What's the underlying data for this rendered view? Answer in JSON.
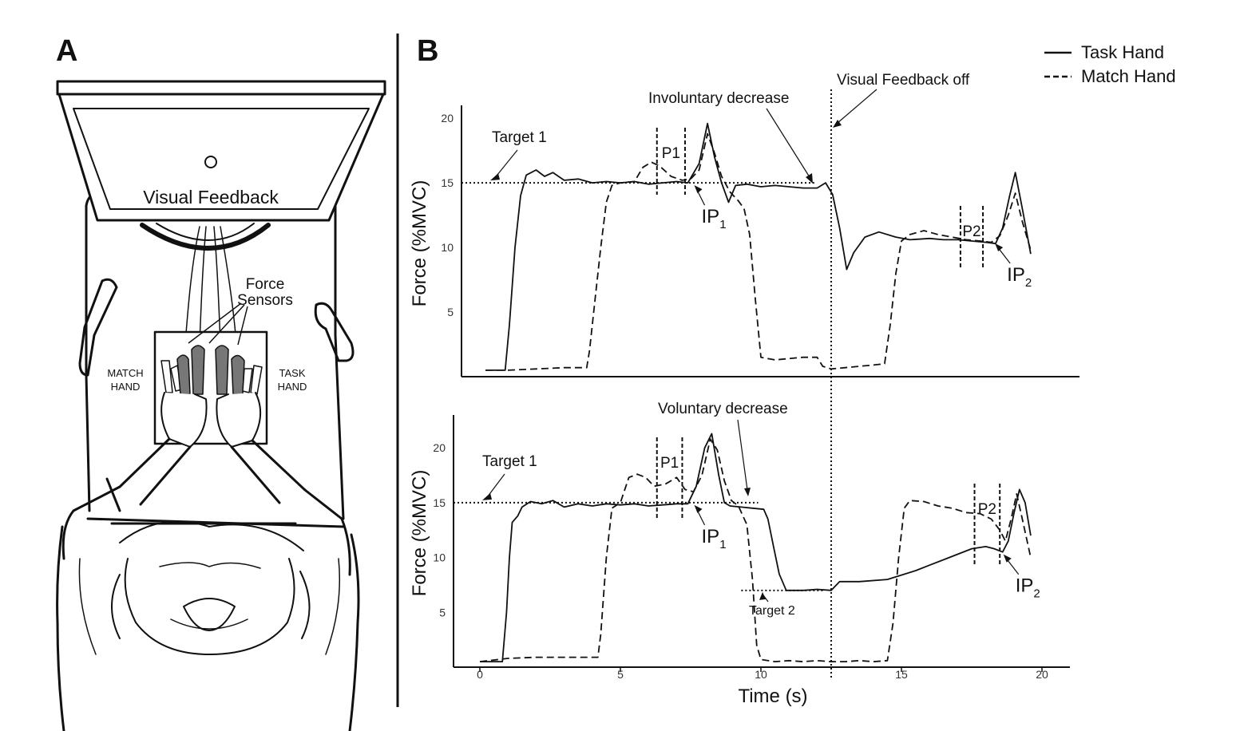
{
  "panel_a": {
    "letter": "A",
    "visual_feedback_label": "Visual Feedback",
    "force_sensors_label_line1": "Force",
    "force_sensors_label_line2": "Sensors",
    "match_hand_line1": "MATCH",
    "match_hand_line2": "HAND",
    "task_hand_line1": "TASK",
    "task_hand_line2": "HAND"
  },
  "panel_b": {
    "letter": "B",
    "legend": {
      "solid": "Task Hand",
      "dashed": "Match Hand",
      "placement": "top-right"
    },
    "visual_feedback_off": "Visual Feedback off",
    "visual_feedback_off_time": 12.5,
    "xlabel": "Time (s)",
    "ylabel": "Force (%MVC)"
  },
  "chart_data": [
    {
      "type": "line",
      "annotation": "Involuntary decrease",
      "xlim": [
        -0.8,
        21
      ],
      "ylim": [
        0,
        21
      ],
      "x_ticks": [],
      "y_ticks": [
        5,
        10,
        15,
        20
      ],
      "target1_label": "Target 1",
      "target1_value": 15,
      "window_labels": [
        "P1",
        "P2"
      ],
      "windows": [
        [
          6.3,
          7.3
        ],
        [
          17.1,
          17.9
        ]
      ],
      "ip1": {
        "x": 7.6,
        "y": 15
      },
      "ip2": {
        "x": 18.3,
        "y": 10.5
      },
      "ip_labels": [
        "IP",
        "1",
        "IP",
        "2"
      ],
      "series": [
        {
          "name": "Task Hand",
          "style": "solid",
          "points": [
            [
              0.2,
              0.5
            ],
            [
              0.9,
              0.5
            ],
            [
              1.05,
              4
            ],
            [
              1.25,
              10
            ],
            [
              1.45,
              14
            ],
            [
              1.65,
              15.6
            ],
            [
              2,
              16
            ],
            [
              2.3,
              15.5
            ],
            [
              2.6,
              15.8
            ],
            [
              3,
              15.2
            ],
            [
              3.5,
              15.3
            ],
            [
              4,
              15
            ],
            [
              4.5,
              15.1
            ],
            [
              5,
              15
            ],
            [
              5.5,
              15.1
            ],
            [
              6,
              14.9
            ],
            [
              6.5,
              15
            ],
            [
              7,
              15.1
            ],
            [
              7.4,
              15
            ],
            [
              7.8,
              16.5
            ],
            [
              8.1,
              19.6
            ],
            [
              8.35,
              17
            ],
            [
              8.6,
              15
            ],
            [
              8.85,
              13.5
            ],
            [
              9.1,
              14.8
            ],
            [
              9.5,
              14.9
            ],
            [
              10,
              14.7
            ],
            [
              10.5,
              14.8
            ],
            [
              11,
              14.7
            ],
            [
              11.5,
              14.6
            ],
            [
              12,
              14.6
            ],
            [
              12.3,
              15
            ],
            [
              12.55,
              14.1
            ],
            [
              12.8,
              11.5
            ],
            [
              13.05,
              8.3
            ],
            [
              13.3,
              9.6
            ],
            [
              13.7,
              10.8
            ],
            [
              14.2,
              11.2
            ],
            [
              14.8,
              10.8
            ],
            [
              15.3,
              10.6
            ],
            [
              16,
              10.7
            ],
            [
              16.5,
              10.6
            ],
            [
              17,
              10.6
            ],
            [
              17.5,
              10.5
            ],
            [
              18,
              10.4
            ],
            [
              18.35,
              10.3
            ],
            [
              18.6,
              11.5
            ],
            [
              18.85,
              14
            ],
            [
              19.05,
              15.8
            ],
            [
              19.3,
              13
            ],
            [
              19.6,
              9.5
            ]
          ]
        },
        {
          "name": "Match Hand",
          "style": "dashed",
          "points": [
            [
              0.2,
              0.5
            ],
            [
              1,
              0.5
            ],
            [
              2,
              0.6
            ],
            [
              3,
              0.7
            ],
            [
              3.8,
              0.7
            ],
            [
              3.9,
              2
            ],
            [
              4.1,
              6
            ],
            [
              4.3,
              10
            ],
            [
              4.5,
              13.5
            ],
            [
              4.7,
              14.8
            ],
            [
              5,
              15
            ],
            [
              5.5,
              15.1
            ],
            [
              5.8,
              16.2
            ],
            [
              6.1,
              16.6
            ],
            [
              6.4,
              16.3
            ],
            [
              6.8,
              15.5
            ],
            [
              7.2,
              15.2
            ],
            [
              7.5,
              15.3
            ],
            [
              7.8,
              16
            ],
            [
              8.1,
              18.8
            ],
            [
              8.35,
              17.3
            ],
            [
              8.6,
              15.5
            ],
            [
              8.9,
              14.3
            ],
            [
              9.2,
              13.6
            ],
            [
              9.4,
              13
            ],
            [
              9.6,
              11
            ],
            [
              9.8,
              6
            ],
            [
              10,
              1.5
            ],
            [
              10.5,
              1.3
            ],
            [
              11,
              1.4
            ],
            [
              11.5,
              1.5
            ],
            [
              12,
              1.5
            ],
            [
              12.2,
              0.8
            ],
            [
              12.5,
              0.6
            ],
            [
              13,
              0.7
            ],
            [
              13.5,
              0.8
            ],
            [
              14,
              0.9
            ],
            [
              14.4,
              1
            ],
            [
              14.6,
              4
            ],
            [
              14.8,
              8
            ],
            [
              15,
              10.5
            ],
            [
              15.3,
              11
            ],
            [
              15.8,
              11.3
            ],
            [
              16.3,
              11
            ],
            [
              16.8,
              10.8
            ],
            [
              17.3,
              10.6
            ],
            [
              17.8,
              10.5
            ],
            [
              18.2,
              10.4
            ],
            [
              18.5,
              10.9
            ],
            [
              18.8,
              12.5
            ],
            [
              19.05,
              14.2
            ],
            [
              19.3,
              12
            ],
            [
              19.6,
              9.8
            ]
          ]
        }
      ]
    },
    {
      "type": "line",
      "annotation": "Voluntary decrease",
      "xlim": [
        -0.8,
        21
      ],
      "ylim": [
        0,
        23
      ],
      "x_ticks": [
        0,
        5,
        10,
        15,
        20
      ],
      "y_ticks": [
        5,
        10,
        15,
        20
      ],
      "target1_label": "Target 1",
      "target1_value": 15,
      "target2_label": "Target 2",
      "target2_value": 7,
      "window_labels": [
        "P1",
        "P2"
      ],
      "windows": [
        [
          6.3,
          7.2
        ],
        [
          17.6,
          18.5
        ]
      ],
      "ip1": {
        "x": 7.6,
        "y": 15
      },
      "ip2": {
        "x": 18.6,
        "y": 10.5
      },
      "ip_labels": [
        "IP",
        "1",
        "IP",
        "2"
      ],
      "series": [
        {
          "name": "Task Hand",
          "style": "solid",
          "points": [
            [
              0,
              0.5
            ],
            [
              0.8,
              0.5
            ],
            [
              0.95,
              5
            ],
            [
              1.05,
              10
            ],
            [
              1.15,
              13.2
            ],
            [
              1.35,
              13.8
            ],
            [
              1.5,
              14.6
            ],
            [
              1.8,
              15.1
            ],
            [
              2.2,
              14.9
            ],
            [
              2.6,
              15.2
            ],
            [
              3,
              14.6
            ],
            [
              3.5,
              14.9
            ],
            [
              4,
              14.7
            ],
            [
              4.5,
              14.9
            ],
            [
              5,
              14.8
            ],
            [
              5.5,
              14.9
            ],
            [
              6,
              14.7
            ],
            [
              6.5,
              14.8
            ],
            [
              7,
              14.9
            ],
            [
              7.4,
              14.9
            ],
            [
              7.7,
              16.5
            ],
            [
              8,
              20
            ],
            [
              8.25,
              21.3
            ],
            [
              8.5,
              17.5
            ],
            [
              8.7,
              15
            ],
            [
              8.9,
              14.7
            ],
            [
              9.3,
              14.6
            ],
            [
              9.7,
              14.5
            ],
            [
              10.1,
              14.4
            ],
            [
              10.25,
              13.5
            ],
            [
              10.45,
              11
            ],
            [
              10.65,
              8.5
            ],
            [
              10.9,
              7
            ],
            [
              11.5,
              7
            ],
            [
              12,
              7.1
            ],
            [
              12.5,
              7
            ],
            [
              12.8,
              7.8
            ],
            [
              13.5,
              7.8
            ],
            [
              14.5,
              8
            ],
            [
              15,
              8.4
            ],
            [
              15.5,
              8.8
            ],
            [
              16,
              9.3
            ],
            [
              16.5,
              9.8
            ],
            [
              17,
              10.3
            ],
            [
              17.5,
              10.8
            ],
            [
              18,
              11
            ],
            [
              18.3,
              10.8
            ],
            [
              18.6,
              10.5
            ],
            [
              18.8,
              11.5
            ],
            [
              19,
              14
            ],
            [
              19.2,
              16.2
            ],
            [
              19.4,
              15
            ],
            [
              19.6,
              12
            ]
          ]
        },
        {
          "name": "Match Hand",
          "style": "dashed",
          "points": [
            [
              0,
              0.5
            ],
            [
              1,
              0.8
            ],
            [
              2,
              0.9
            ],
            [
              3,
              0.9
            ],
            [
              3.8,
              0.9
            ],
            [
              4.2,
              0.9
            ],
            [
              4.3,
              3
            ],
            [
              4.5,
              10
            ],
            [
              4.7,
              14.5
            ],
            [
              5,
              15
            ],
            [
              5.3,
              17.3
            ],
            [
              5.6,
              17.6
            ],
            [
              5.9,
              17.3
            ],
            [
              6.2,
              16.5
            ],
            [
              6.6,
              16.7
            ],
            [
              7,
              17.3
            ],
            [
              7.3,
              16.2
            ],
            [
              7.6,
              16
            ],
            [
              7.9,
              17.5
            ],
            [
              8.2,
              20.8
            ],
            [
              8.45,
              19.8
            ],
            [
              8.7,
              17
            ],
            [
              8.95,
              15.2
            ],
            [
              9.2,
              14.7
            ],
            [
              9.5,
              13
            ],
            [
              9.7,
              8
            ],
            [
              9.85,
              2
            ],
            [
              10,
              0.7
            ],
            [
              10.5,
              0.5
            ],
            [
              11,
              0.6
            ],
            [
              11.5,
              0.5
            ],
            [
              12,
              0.6
            ],
            [
              12.5,
              0.5
            ],
            [
              13,
              0.5
            ],
            [
              13.5,
              0.6
            ],
            [
              14,
              0.5
            ],
            [
              14.5,
              0.6
            ],
            [
              14.7,
              4
            ],
            [
              14.9,
              10
            ],
            [
              15.1,
              14.5
            ],
            [
              15.3,
              15.2
            ],
            [
              15.8,
              15.1
            ],
            [
              16.3,
              14.7
            ],
            [
              16.8,
              14.5
            ],
            [
              17.3,
              14.1
            ],
            [
              17.8,
              14
            ],
            [
              18.2,
              13.5
            ],
            [
              18.5,
              12.5
            ],
            [
              18.7,
              11.5
            ],
            [
              18.9,
              13.5
            ],
            [
              19.1,
              15.8
            ],
            [
              19.3,
              13.5
            ],
            [
              19.6,
              10
            ]
          ]
        }
      ]
    }
  ]
}
